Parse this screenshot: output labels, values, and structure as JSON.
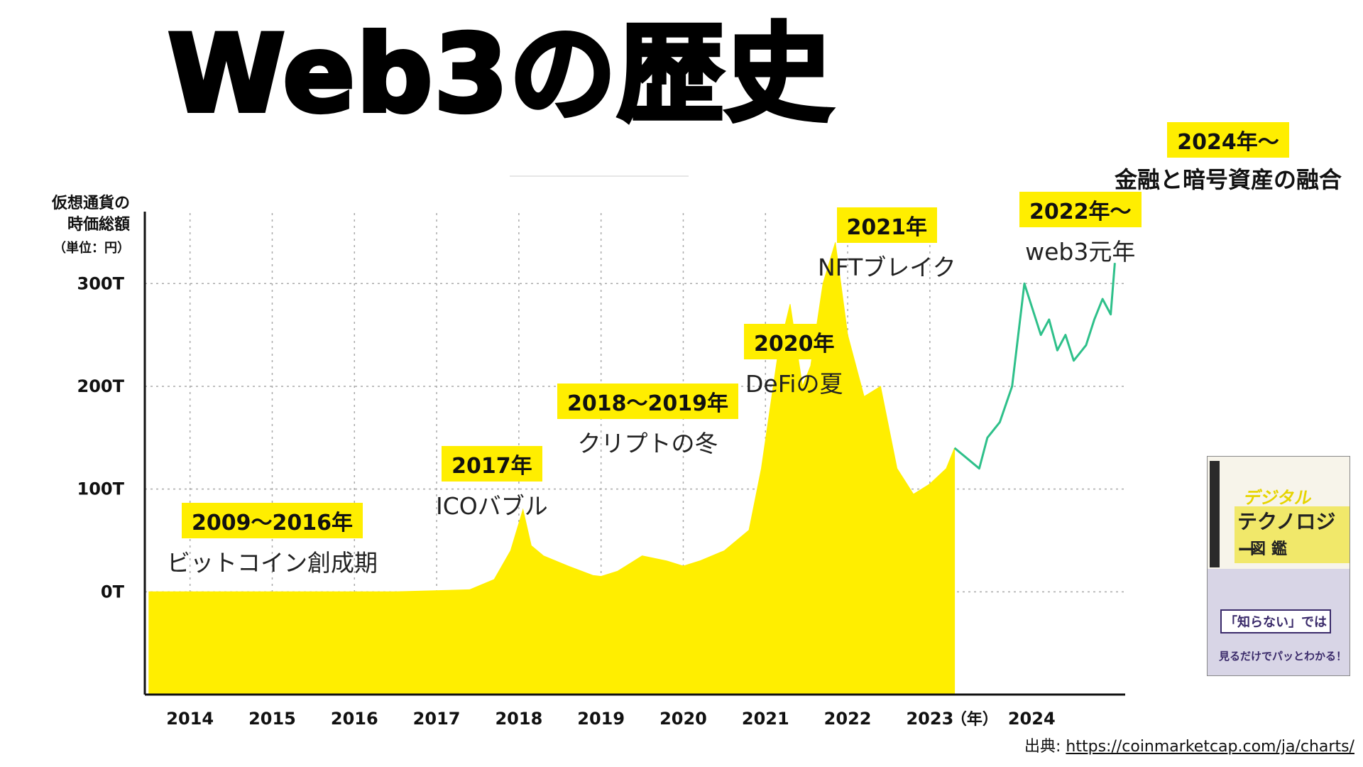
{
  "title": "Web3の歴史",
  "ylabel": "仮想通貨の\n時価総額",
  "yunit": "（単位：円）",
  "source": {
    "label": "出典: ",
    "url": "https://coinmarketcap.com/ja/charts/"
  },
  "book": {
    "title1": "デジタル",
    "title2": "テクノロジー",
    "title3": "図鑑",
    "tagline": "「知らない」では",
    "tagline2": "見るだけでパッとわかる！"
  },
  "colors": {
    "area": "#ffee00",
    "line": "#2ec08a",
    "axis": "#111111",
    "grid": "#aaaaaa"
  },
  "annotations": [
    {
      "year": "2009〜2016年",
      "desc": "ビットコイン創成期"
    },
    {
      "year": "2017年",
      "desc": "ICOバブル"
    },
    {
      "year": "2018〜2019年",
      "desc": "クリプトの冬"
    },
    {
      "year": "2020年",
      "desc": "DeFiの夏"
    },
    {
      "year": "2021年",
      "desc": "NFTブレイク"
    },
    {
      "year": "2022年〜",
      "desc": "web3元年"
    },
    {
      "year": "2024年〜",
      "desc": "金融と暗号資産の融合"
    }
  ],
  "chart_data": {
    "type": "area",
    "title": "Web3の歴史",
    "ylabel": "仮想通貨の時価総額（単位：円）",
    "xlabel": "（年）",
    "y_ticks": [
      "0T",
      "100T",
      "200T",
      "300T"
    ],
    "x_ticks": [
      "2014",
      "2015",
      "2016",
      "2017",
      "2018",
      "2019",
      "2020",
      "2021",
      "2022",
      "2023"
    ],
    "x_last_tick": "2024",
    "x_unit_label": "（年）",
    "ylim": [
      -100,
      370
    ],
    "grid": true,
    "series": [
      {
        "style": "area",
        "x": [
          2013.5,
          2016.5,
          2017.4,
          2017.7,
          2017.9,
          2018.05,
          2018.15,
          2018.3,
          2018.6,
          2018.9,
          2019.0,
          2019.2,
          2019.5,
          2019.8,
          2020.0,
          2020.2,
          2020.5,
          2020.8,
          2020.95,
          2021.15,
          2021.3,
          2021.45,
          2021.55,
          2021.7,
          2021.85,
          2022.0,
          2022.2,
          2022.4,
          2022.6,
          2022.8,
          2023.0,
          2023.2,
          2023.3
        ],
        "y": [
          0,
          0,
          2,
          12,
          40,
          80,
          45,
          35,
          25,
          16,
          15,
          20,
          35,
          30,
          25,
          30,
          40,
          60,
          120,
          230,
          280,
          200,
          220,
          300,
          340,
          250,
          190,
          200,
          120,
          95,
          105,
          120,
          140
        ]
      },
      {
        "style": "line",
        "x": [
          2023.3,
          2023.45,
          2023.6,
          2023.7,
          2023.85,
          2024.0,
          2024.15,
          2024.35,
          2024.45,
          2024.55,
          2024.65,
          2024.75,
          2024.9,
          2025.0,
          2025.1,
          2025.2,
          2025.25
        ],
        "y": [
          140,
          130,
          120,
          150,
          165,
          200,
          300,
          250,
          265,
          235,
          250,
          225,
          240,
          265,
          285,
          270,
          320
        ]
      }
    ]
  }
}
